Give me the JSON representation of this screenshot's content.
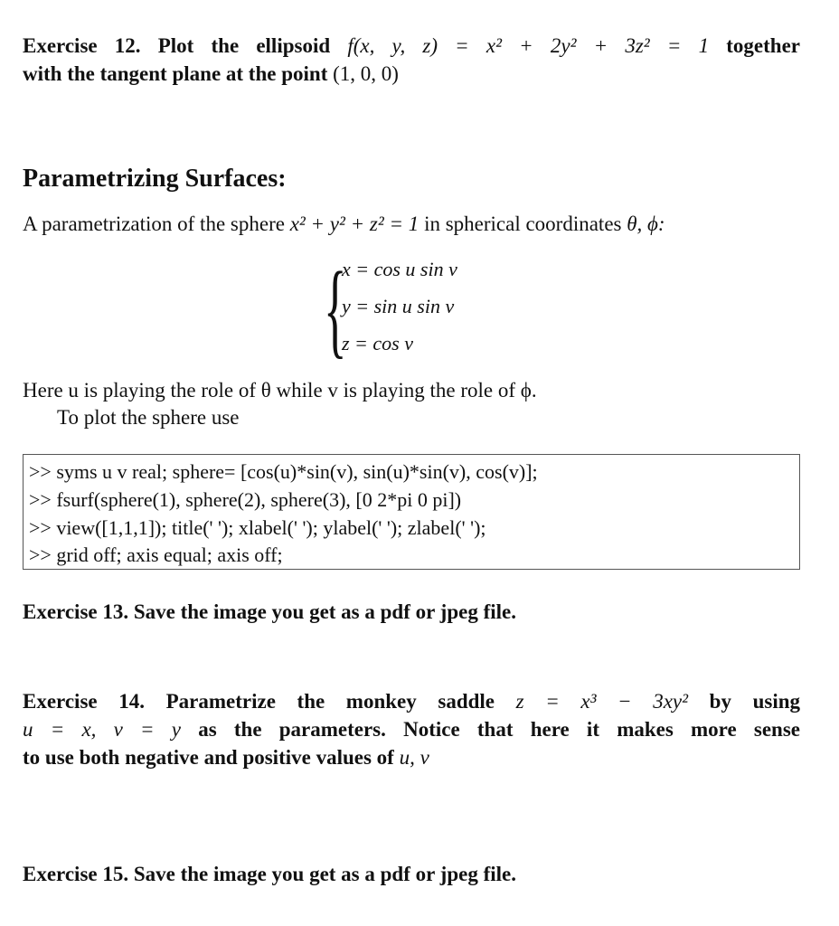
{
  "ex12": {
    "label": "Exercise 12.",
    "text1": "Plot the ellipsoid",
    "math1": "f(x, y, z) = x² + 2y² + 3z² = 1",
    "text2": "together",
    "text3": "with the tangent plane at the point",
    "math2": "(1, 0, 0)"
  },
  "section": {
    "heading": "Parametrizing Surfaces:",
    "intro_text": "A parametrization of the sphere",
    "intro_math": "x² + y² + z² = 1",
    "intro_text2": "in spherical coordinates",
    "intro_math2": "θ, ϕ:",
    "equations": [
      "x = cos u sin v",
      "y = sin u sin v",
      "z = cos v"
    ],
    "here_line": "Here u is playing the role of θ while v is playing the role of ϕ.",
    "plot_line": "To plot the sphere use"
  },
  "code": [
    ">> syms u v real; sphere= [cos(u)*sin(v), sin(u)*sin(v), cos(v)];",
    ">> fsurf(sphere(1), sphere(2), sphere(3), [0 2*pi 0 pi])",
    ">> view([1,1,1]); title(' '); xlabel(' '); ylabel(' '); zlabel(' ');",
    ">> grid off; axis equal; axis off;"
  ],
  "ex13": {
    "label": "Exercise 13.",
    "text": "Save the image you get as a pdf or jpeg file."
  },
  "ex14": {
    "label": "Exercise 14.",
    "text1": "Parametrize the monkey saddle",
    "math1": "z = x³ − 3xy²",
    "text2": "by using",
    "math2": "u = x, v = y",
    "text3": "as the parameters. Notice that here it makes more sense",
    "text4": "to use both negative and positive values of",
    "math3": "u, v"
  },
  "ex15": {
    "label": "Exercise 15.",
    "text": "Save the image you get as a pdf or jpeg file."
  }
}
